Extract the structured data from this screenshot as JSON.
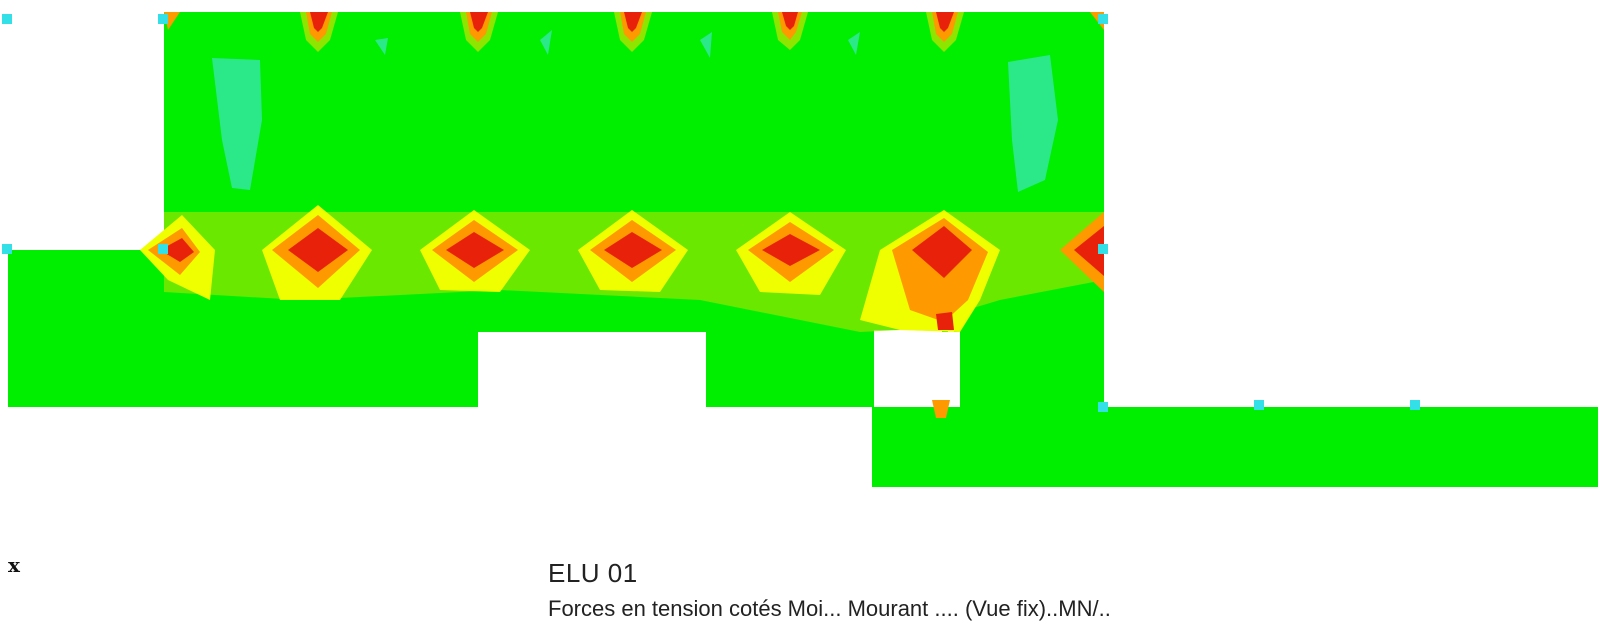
{
  "axis_label_x": "x",
  "load_case": "ELU 01",
  "caption": "Forces en tension cotés Moi... Mourant .... (Vue fix)..MN/..",
  "colors": {
    "background": "#ffffff",
    "plate": "#00ee00",
    "low": "#33e8a0",
    "mid_low": "#8ee600",
    "mid": "#f0ff00",
    "high": "#ff9900",
    "peak": "#e8220a",
    "support": "#33e0e8"
  }
}
